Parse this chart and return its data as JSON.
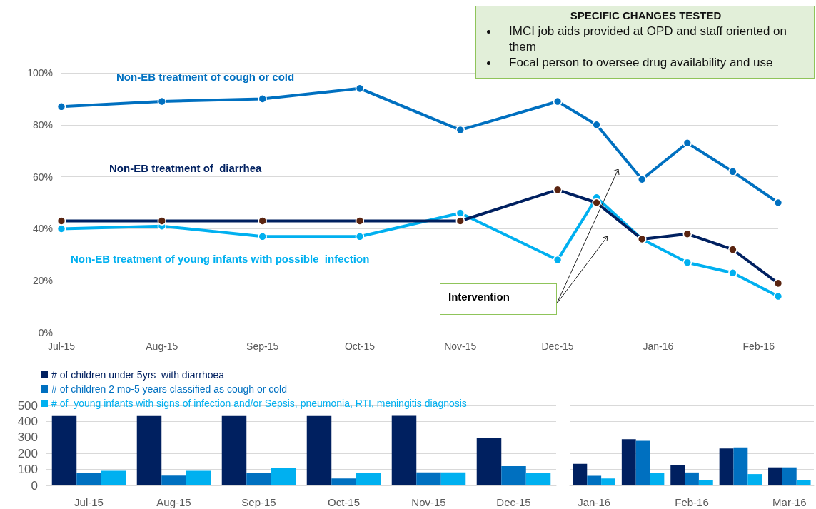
{
  "chart_data": [
    {
      "type": "line",
      "x": [
        "2015-07-01",
        "2015-08-01",
        "2015-09-01",
        "2015-10-01",
        "2015-11-01",
        "2015-12-01",
        "2015-12-13",
        "2015-12-27",
        "2016-01-10",
        "2016-01-24",
        "2016-02-07"
      ],
      "series": [
        {
          "name": "Non-EB treatment of cough or cold",
          "color": "#0070c0",
          "values": [
            87,
            89,
            90,
            94,
            78,
            89,
            80,
            59,
            73,
            62,
            50
          ]
        },
        {
          "name": "Non-EB treatment of  diarrhea",
          "color": "#002060",
          "colors": [
            "#5a2410",
            "#5a2410",
            "#5a2410",
            "#5a2410",
            "#5a2410",
            "#5a2410",
            "#5a2410",
            "#5a2410",
            "#5a2410",
            "#5a2410",
            "#5a2410"
          ],
          "values": [
            43,
            43,
            43,
            43,
            43,
            55,
            50,
            36,
            38,
            32,
            19
          ]
        },
        {
          "name": "Non-EB treatment of young infants with possible  infection",
          "color": "#00b0f0",
          "values": [
            40,
            41,
            37,
            37,
            46,
            28,
            52,
            36,
            27,
            23,
            14
          ]
        }
      ],
      "xlim": [
        "2015-07-01",
        "2016-02-07"
      ],
      "xticks": [
        {
          "value": "2015-07-01",
          "label": "Jul-15"
        },
        {
          "value": "2015-08-01",
          "label": "Aug-15"
        },
        {
          "value": "2015-09-01",
          "label": "Sep-15"
        },
        {
          "value": "2015-10-01",
          "label": "Oct-15"
        },
        {
          "value": "2015-11-01",
          "label": "Nov-15"
        },
        {
          "value": "2015-12-01",
          "label": "Dec-15"
        },
        {
          "value": "2016-01-01",
          "label": "Jan-16"
        },
        {
          "value": "2016-02-01",
          "label": "Feb-16"
        }
      ],
      "ylim": [
        0,
        100
      ],
      "yticks": [
        {
          "value": 0,
          "label": "0%"
        },
        {
          "value": 20,
          "label": "20%"
        },
        {
          "value": 40,
          "label": "40%"
        },
        {
          "value": 60,
          "label": "60%"
        },
        {
          "value": 80,
          "label": "80%"
        },
        {
          "value": 100,
          "label": "100%"
        }
      ],
      "grid": "y",
      "marker": "circle",
      "line_style": "solid",
      "annotations": [
        "SPECIFIC CHANGES  TESTED",
        "IMCI job aids provided at OPD and staff oriented on them",
        "Focal person to oversee drug availability and use",
        "Intervention"
      ]
    },
    {
      "type": "bar",
      "categories": [
        "Jul-15",
        "Aug-15",
        "Sep-15",
        "Oct-15",
        "Nov-15",
        "Dec-15"
      ],
      "series": [
        {
          "name": "# of children under 5yrs  with diarrhoea",
          "color": "#002060",
          "values": [
            434,
            434,
            434,
            434,
            435,
            296
          ]
        },
        {
          "name": "# of children 2 mo-5 years classified as cough or cold",
          "color": "#0070c0",
          "values": [
            77,
            61,
            77,
            44,
            81,
            120
          ]
        },
        {
          "name": "# of  young infants with signs of infection and/or Sepsis, pneumonia, RTI, meningitis diagnosis",
          "color": "#00b0f0",
          "values": [
            92,
            92,
            109,
            77,
            81,
            76
          ]
        }
      ],
      "ylim": [
        0,
        500
      ],
      "yticks": [
        0,
        100,
        200,
        300,
        400,
        500
      ],
      "grid": "y",
      "legend": "top left"
    },
    {
      "type": "bar",
      "categories": [
        "Jan-16",
        null,
        "Feb-16",
        null,
        "Mar-16"
      ],
      "series": [
        {
          "color": "#002060",
          "values": [
            135,
            289,
            125,
            231,
            113
          ]
        },
        {
          "color": "#0070c0",
          "values": [
            60,
            279,
            81,
            238,
            113
          ]
        },
        {
          "color": "#00b0f0",
          "values": [
            43,
            76,
            33,
            71,
            33
          ]
        }
      ],
      "ylim": [
        0,
        500
      ],
      "yticks": [
        0,
        100,
        200,
        300,
        400,
        500
      ],
      "grid": "y",
      "tick_labels": "x"
    }
  ]
}
